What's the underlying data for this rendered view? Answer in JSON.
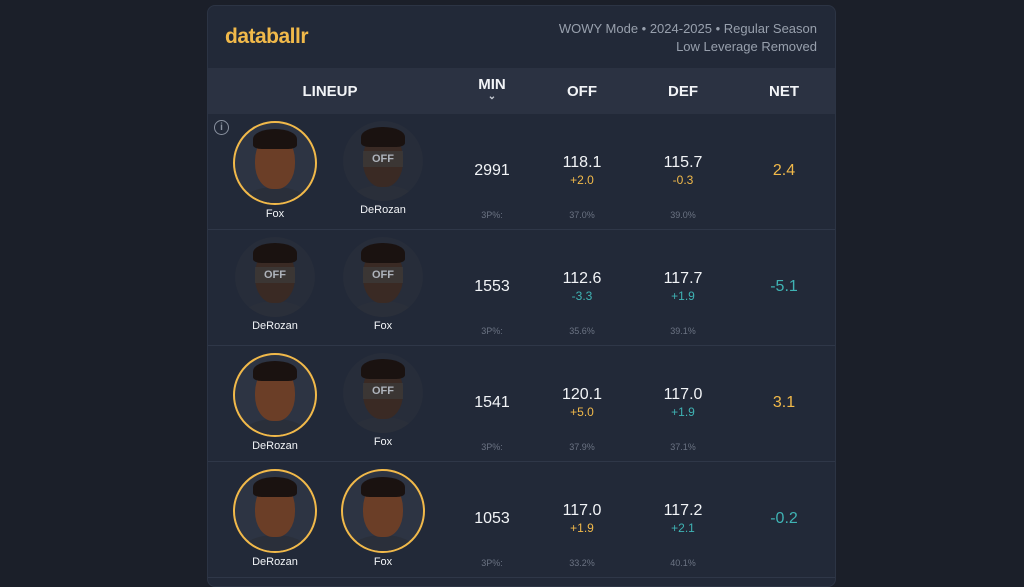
{
  "header": {
    "logo": "databallr",
    "meta_line1": "WOWY Mode • 2024-2025 • Regular Season",
    "meta_line2": "Low Leverage Removed"
  },
  "columns": {
    "lineup": "LINEUP",
    "min": "MIN",
    "off": "OFF",
    "def": "DEF",
    "net": "NET",
    "sort_icon": "chevron-down"
  },
  "colors": {
    "accent": "#f1b94a",
    "negative": "#3fb3b4",
    "background": "#222938"
  },
  "rows": [
    {
      "p1": {
        "name": "Fox",
        "on": true
      },
      "p2": {
        "name": "DeRozan",
        "on": false,
        "off_label": "OFF"
      },
      "min": "2991",
      "off": "118.1",
      "off_diff": "+2.0",
      "def": "115.7",
      "def_diff": "-0.3",
      "net": "2.4",
      "tp_label": "3P%:",
      "off_3p": "37.0%",
      "def_3p": "39.0%"
    },
    {
      "p1": {
        "name": "DeRozan",
        "on": false,
        "off_label": "OFF"
      },
      "p2": {
        "name": "Fox",
        "on": false,
        "off_label": "OFF"
      },
      "min": "1553",
      "off": "112.6",
      "off_diff": "-3.3",
      "def": "117.7",
      "def_diff": "+1.9",
      "net": "-5.1",
      "tp_label": "3P%:",
      "off_3p": "35.6%",
      "def_3p": "39.1%"
    },
    {
      "p1": {
        "name": "DeRozan",
        "on": true
      },
      "p2": {
        "name": "Fox",
        "on": false,
        "off_label": "OFF"
      },
      "min": "1541",
      "off": "120.1",
      "off_diff": "+5.0",
      "def": "117.0",
      "def_diff": "+1.9",
      "net": "3.1",
      "tp_label": "3P%:",
      "off_3p": "37.9%",
      "def_3p": "37.1%"
    },
    {
      "p1": {
        "name": "DeRozan",
        "on": true
      },
      "p2": {
        "name": "Fox",
        "on": true
      },
      "min": "1053",
      "off": "117.0",
      "off_diff": "+1.9",
      "def": "117.2",
      "def_diff": "+2.1",
      "net": "-0.2",
      "tp_label": "3P%:",
      "off_3p": "33.2%",
      "def_3p": "40.1%"
    }
  ]
}
